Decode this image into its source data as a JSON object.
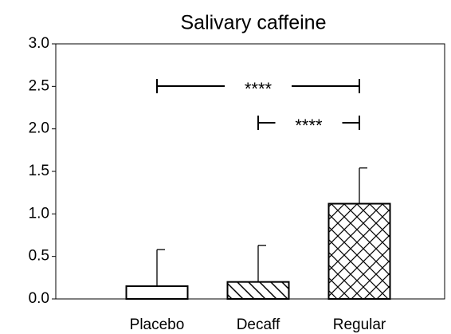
{
  "chart_data": {
    "type": "bar",
    "title": "Salivary caffeine",
    "categories": [
      "Placebo",
      "Decaff",
      "Regular"
    ],
    "values": [
      0.15,
      0.2,
      1.12
    ],
    "errors": [
      0.43,
      0.43,
      0.42
    ],
    "patterns": [
      "none",
      "diagonal",
      "crosshatch"
    ],
    "color": "#000000",
    "ylim": [
      0,
      3.0
    ],
    "yticks": [
      {
        "value": 0,
        "label": "0.0"
      },
      {
        "value": 0.5,
        "label": "0.5"
      },
      {
        "value": 1,
        "label": "1.0"
      },
      {
        "value": 1.5,
        "label": "1.5"
      },
      {
        "value": 2,
        "label": "2.0"
      },
      {
        "value": 2.5,
        "label": "2.5"
      },
      {
        "value": 3,
        "label": "3.0"
      }
    ],
    "comparisons": [
      {
        "from": 0,
        "to": 2,
        "label": "****"
      },
      {
        "from": 1,
        "to": 2,
        "label": "****"
      }
    ]
  }
}
